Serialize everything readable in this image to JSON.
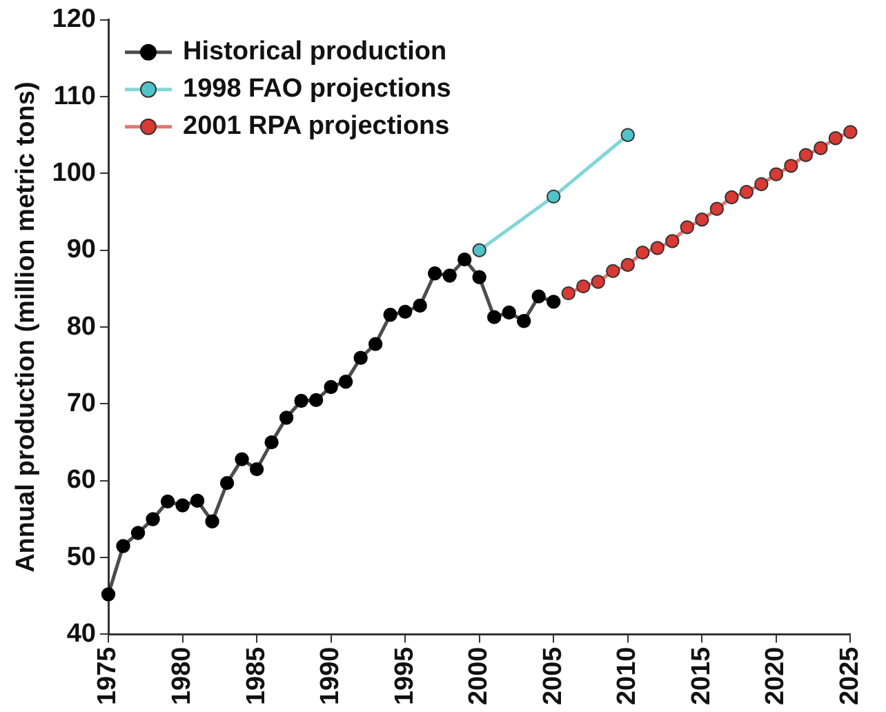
{
  "chart_data": {
    "type": "line",
    "ylabel": "Annual production (million metric tons)",
    "xlim": [
      1975,
      2025
    ],
    "xticks": [
      1975,
      1980,
      1985,
      1990,
      1995,
      2000,
      2005,
      2010,
      2015,
      2020,
      2025
    ],
    "ylim": [
      40,
      120
    ],
    "yticks": [
      40,
      50,
      60,
      70,
      80,
      90,
      100,
      110,
      120
    ],
    "grid": false,
    "legend": "top left",
    "marker": "circle",
    "line_style": "solid",
    "series": [
      {
        "name": "Historical production",
        "color": "#000000",
        "x": [
          1975,
          1976,
          1977,
          1978,
          1979,
          1980,
          1981,
          1982,
          1983,
          1984,
          1985,
          1986,
          1987,
          1988,
          1989,
          1990,
          1991,
          1992,
          1993,
          1994,
          1995,
          1996,
          1997,
          1998,
          1999,
          2000,
          2001,
          2002,
          2003,
          2004,
          2005
        ],
        "values": [
          45.2,
          51.5,
          53.2,
          55,
          57.3,
          56.8,
          57.4,
          54.7,
          59.7,
          62.8,
          61.5,
          65,
          68.2,
          70.4,
          70.5,
          72.2,
          72.9,
          76,
          77.8,
          81.6,
          82,
          82.8,
          87,
          86.7,
          88.8,
          86.5,
          81.3,
          81.9,
          80.8,
          84,
          83.3
        ]
      },
      {
        "name": "1998 FAO projections",
        "color": "#4fc4c8",
        "x": [
          2000,
          2005,
          2010
        ],
        "values": [
          90,
          97,
          105
        ]
      },
      {
        "name": "2001 RPA projections",
        "color": "#d93a33",
        "x": [
          2006,
          2007,
          2008,
          2009,
          2010,
          2011,
          2012,
          2013,
          2014,
          2015,
          2016,
          2017,
          2018,
          2019,
          2020,
          2021,
          2022,
          2023,
          2024,
          2025
        ],
        "values": [
          84.4,
          85.3,
          85.9,
          87.3,
          88.1,
          89.7,
          90.3,
          91.2,
          93,
          94,
          95.4,
          96.9,
          97.6,
          98.6,
          99.9,
          101,
          102.4,
          103.3,
          104.6,
          105.4
        ]
      }
    ]
  }
}
